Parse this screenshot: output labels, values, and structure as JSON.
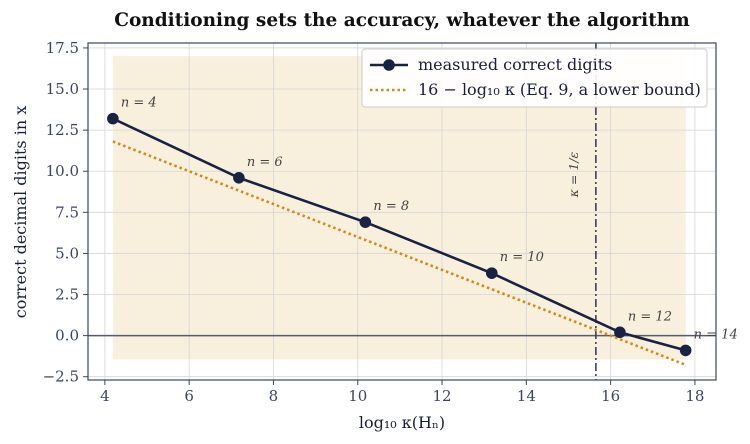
{
  "chart_data": {
    "type": "line",
    "title": "Conditioning sets the accuracy, whatever the algorithm",
    "xlabel": "log₁₀ κ(Hₙ)",
    "ylabel": "correct decimal digits in x",
    "xlim": [
      3.6,
      18.5
    ],
    "ylim": [
      -2.7,
      17.8
    ],
    "xticks": [
      4,
      6,
      8,
      10,
      12,
      14,
      16,
      18
    ],
    "yticks": [
      -2.5,
      0.0,
      2.5,
      5.0,
      7.5,
      10.0,
      12.5,
      15.0,
      17.5
    ],
    "ytick_labels": [
      "−2.5",
      "0.0",
      "2.5",
      "5.0",
      "7.5",
      "10.0",
      "12.5",
      "15.0",
      "17.5"
    ],
    "grid": true,
    "legend_position": "top-right",
    "series": [
      {
        "name": "measured correct digits",
        "style": "solid-line-with-markers",
        "color": "#1a2244",
        "x": [
          4.19,
          7.18,
          10.18,
          13.18,
          16.22,
          17.78
        ],
        "y": [
          13.2,
          9.6,
          6.9,
          3.8,
          0.2,
          -0.9
        ],
        "point_labels": [
          "n = 4",
          "n = 6",
          "n = 8",
          "n = 10",
          "n = 12",
          "n = 14"
        ]
      },
      {
        "name": "16 − log₁₀ κ  (Eq. 9, a lower bound)",
        "style": "dotted",
        "color": "#d08c1a",
        "x": [
          4.19,
          7.18,
          10.18,
          13.18,
          16.22,
          17.78
        ],
        "y": [
          11.81,
          8.82,
          5.82,
          2.82,
          -0.22,
          -1.78
        ]
      }
    ],
    "reference_lines": {
      "vertical": {
        "x": 15.65,
        "label": "κ = 1/ε",
        "color": "#3a3f66"
      },
      "horizontal": {
        "y": 0,
        "color": "#555a6e"
      }
    },
    "shaded_region": {
      "x": [
        4.19,
        17.78
      ],
      "y": [
        -1.45,
        17.0
      ],
      "color": "#f5e9d0"
    }
  }
}
